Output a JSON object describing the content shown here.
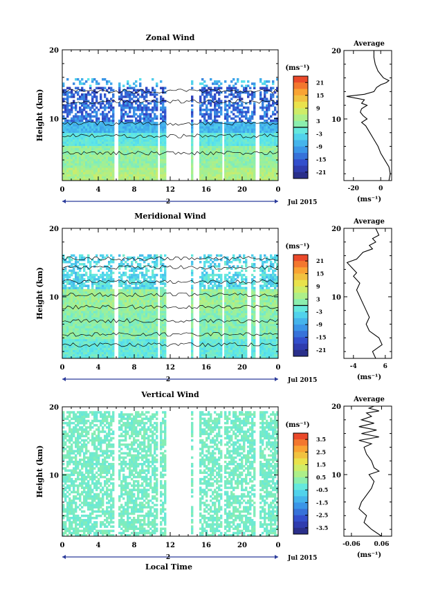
{
  "page": {
    "colorbar_unit": "(ms⁻¹)",
    "date_label": "Jul 2015",
    "day_label": "2",
    "xlabel_main": "Local Time",
    "ylabel_main": "Height (km)",
    "avg_title": "Average",
    "avg_xlabel": "(ms⁻¹)"
  },
  "chart_data": [
    {
      "id": "zonal",
      "type": "heatmap",
      "title": "Zonal Wind",
      "xlabel": "",
      "ylabel": "Height (km)",
      "x_ticks": [
        "0",
        "4",
        "8",
        "12",
        "16",
        "20",
        "0"
      ],
      "xlim": [
        0,
        24
      ],
      "ylim": [
        1,
        20
      ],
      "y_ticks": [
        "10",
        "20"
      ],
      "colorbar": {
        "ticks": [
          "21",
          "15",
          "9",
          "3",
          "-3",
          "-9",
          "-15",
          "-21"
        ],
        "range": [
          -24,
          24
        ]
      },
      "data_gaps_hours": [
        [
          5.7,
          6.2
        ],
        [
          10.6,
          10.9
        ],
        [
          11.6,
          12.1
        ],
        [
          12.1,
          14.2
        ],
        [
          14.5,
          15.2
        ],
        [
          17.7,
          17.9
        ],
        [
          21.4,
          21.9
        ]
      ],
      "profile": {
        "x_ticks": [
          "-20",
          "0"
        ],
        "xlim": [
          -27,
          8
        ],
        "y_ticks": [
          "10",
          "20"
        ],
        "ylim": [
          1,
          20
        ],
        "points": [
          [
            6,
            1
          ],
          [
            7,
            2
          ],
          [
            6,
            3
          ],
          [
            3,
            4
          ],
          [
            0,
            5
          ],
          [
            -2,
            6
          ],
          [
            -5,
            7
          ],
          [
            -8,
            8
          ],
          [
            -11,
            9
          ],
          [
            -14,
            9.5
          ],
          [
            -10,
            10
          ],
          [
            -13,
            10.5
          ],
          [
            -15,
            11
          ],
          [
            -14,
            11.5
          ],
          [
            -10,
            12
          ],
          [
            -14,
            12.3
          ],
          [
            -12,
            12.8
          ],
          [
            -17,
            13
          ],
          [
            -25,
            13.3
          ],
          [
            -12,
            13.6
          ],
          [
            -5,
            14
          ],
          [
            -3,
            14.6
          ],
          [
            0,
            15
          ],
          [
            4,
            15.3
          ],
          [
            6,
            15.6
          ],
          [
            2,
            16
          ],
          [
            0,
            16.5
          ],
          [
            -2,
            17
          ],
          [
            -4,
            18
          ],
          [
            -5,
            19
          ],
          [
            -5,
            20
          ]
        ]
      }
    },
    {
      "id": "meridional",
      "type": "heatmap",
      "title": "Meridional Wind",
      "xlabel": "",
      "ylabel": "Height (km)",
      "x_ticks": [
        "0",
        "4",
        "8",
        "12",
        "16",
        "20",
        "0"
      ],
      "xlim": [
        0,
        24
      ],
      "ylim": [
        1,
        20
      ],
      "y_ticks": [
        "10",
        "20"
      ],
      "colorbar": {
        "ticks": [
          "21",
          "15",
          "9",
          "3",
          "-3",
          "-9",
          "-15",
          "-21"
        ],
        "range": [
          -24,
          24
        ]
      },
      "data_gaps_hours": [
        [
          5.7,
          6.2
        ],
        [
          10.6,
          10.9
        ],
        [
          11.6,
          12.1
        ],
        [
          12.1,
          14.2
        ],
        [
          14.5,
          15.2
        ],
        [
          17.7,
          17.9
        ],
        [
          20.5,
          21.0
        ],
        [
          21.4,
          21.9
        ]
      ],
      "profile": {
        "x_ticks": [
          "-4",
          "6"
        ],
        "xlim": [
          -7,
          8
        ],
        "y_ticks": [
          "10",
          "20"
        ],
        "ylim": [
          1,
          20
        ],
        "points": [
          [
            3,
            1
          ],
          [
            2,
            2
          ],
          [
            5,
            3
          ],
          [
            4,
            4
          ],
          [
            1,
            5
          ],
          [
            0,
            6
          ],
          [
            1,
            7
          ],
          [
            0,
            8
          ],
          [
            -1,
            9
          ],
          [
            -2,
            10
          ],
          [
            -3,
            11
          ],
          [
            -2,
            12
          ],
          [
            -4,
            13
          ],
          [
            -3,
            13.5
          ],
          [
            -5,
            14.5
          ],
          [
            -6,
            15
          ],
          [
            -3,
            15.5
          ],
          [
            -2,
            16
          ],
          [
            -1,
            16.5
          ],
          [
            2,
            17
          ],
          [
            1,
            17.5
          ],
          [
            3,
            18
          ],
          [
            2,
            18.5
          ],
          [
            4,
            19
          ],
          [
            3,
            20
          ]
        ]
      }
    },
    {
      "id": "vertical",
      "type": "heatmap",
      "title": "Vertical Wind",
      "xlabel": "Local Time",
      "ylabel": "Height (km)",
      "x_ticks": [
        "0",
        "4",
        "8",
        "12",
        "16",
        "20",
        "0"
      ],
      "xlim": [
        0,
        24
      ],
      "ylim": [
        1,
        20
      ],
      "y_ticks": [
        "10",
        "20"
      ],
      "colorbar": {
        "ticks": [
          "3.5",
          "2.5",
          "1.5",
          "0.5",
          "-0.5",
          "-1.5",
          "-2.5",
          "-3.5"
        ],
        "range": [
          -4,
          4
        ]
      },
      "data_gaps_hours": [
        [
          5.7,
          6.2
        ],
        [
          10.6,
          10.9
        ],
        [
          11.6,
          12.1
        ],
        [
          12.1,
          14.2
        ],
        [
          14.5,
          15.2
        ],
        [
          17.7,
          17.9
        ],
        [
          21.4,
          21.9
        ]
      ],
      "profile": {
        "x_ticks": [
          "-0.06",
          "0.06"
        ],
        "xlim": [
          -0.09,
          0.1
        ],
        "y_ticks": [
          "10",
          "20"
        ],
        "ylim": [
          1,
          20
        ],
        "points": [
          [
            0.06,
            1
          ],
          [
            0.02,
            2
          ],
          [
            -0.01,
            3
          ],
          [
            0.0,
            4
          ],
          [
            -0.03,
            5
          ],
          [
            -0.02,
            6
          ],
          [
            0.0,
            7
          ],
          [
            0.02,
            8
          ],
          [
            0.03,
            9
          ],
          [
            0.01,
            10
          ],
          [
            0.05,
            10.5
          ],
          [
            0.03,
            11
          ],
          [
            0.02,
            12
          ],
          [
            0.0,
            13
          ],
          [
            -0.01,
            14
          ],
          [
            0.02,
            14.5
          ],
          [
            -0.03,
            15
          ],
          [
            0.05,
            15.5
          ],
          [
            -0.02,
            16
          ],
          [
            0.04,
            16.5
          ],
          [
            -0.03,
            17
          ],
          [
            0.03,
            17.5
          ],
          [
            -0.02,
            18
          ],
          [
            0.02,
            18.5
          ],
          [
            0.0,
            19
          ],
          [
            0.05,
            19.3
          ],
          [
            0.01,
            19.7
          ],
          [
            0.03,
            20
          ]
        ]
      }
    }
  ]
}
